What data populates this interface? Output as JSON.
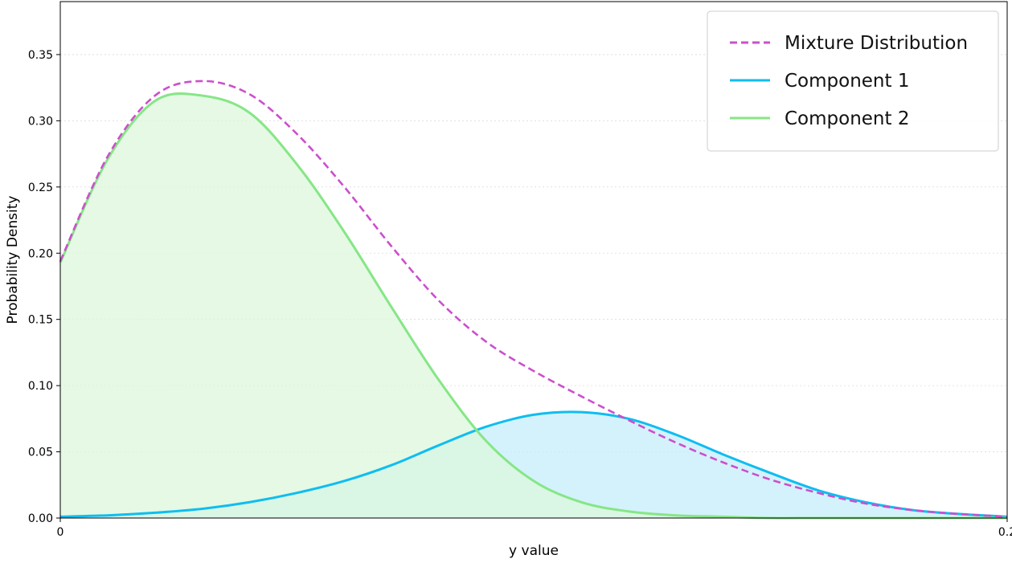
{
  "chart_data": {
    "type": "area",
    "title": "",
    "xlabel": "y value",
    "ylabel": "Probability Density",
    "xlim": [
      0,
      0.2
    ],
    "ylim": [
      0,
      0.39
    ],
    "x_ticks": [
      {
        "value": 0,
        "label": "0"
      },
      {
        "value": 0.2,
        "label": "0.2"
      }
    ],
    "y_ticks": [
      {
        "value": 0.0,
        "label": "0.00"
      },
      {
        "value": 0.05,
        "label": "0.05"
      },
      {
        "value": 0.1,
        "label": "0.10"
      },
      {
        "value": 0.15,
        "label": "0.15"
      },
      {
        "value": 0.2,
        "label": "0.20"
      },
      {
        "value": 0.25,
        "label": "0.25"
      },
      {
        "value": 0.3,
        "label": "0.30"
      },
      {
        "value": 0.35,
        "label": "0.35"
      }
    ],
    "grid": "horizontal-dotted",
    "legend_position": "top-right",
    "x": [
      0,
      0.01,
      0.02,
      0.03,
      0.04,
      0.05,
      0.06,
      0.07,
      0.08,
      0.09,
      0.1,
      0.11,
      0.12,
      0.13,
      0.14,
      0.15,
      0.16,
      0.17,
      0.18,
      0.19,
      0.2
    ],
    "series": [
      {
        "name": "Mixture Distribution",
        "style": "dashed",
        "color": "#cc4fcc",
        "fill": false,
        "values": [
          0.194,
          0.273,
          0.319,
          0.33,
          0.32,
          0.29,
          0.25,
          0.205,
          0.164,
          0.133,
          0.111,
          0.092,
          0.074,
          0.057,
          0.042,
          0.029,
          0.019,
          0.011,
          0.006,
          0.003,
          0.001
        ]
      },
      {
        "name": "Component 1",
        "style": "solid",
        "color": "#0fbdf0",
        "fill": true,
        "fill_color": "#c6eefb",
        "values": [
          0.001,
          0.002,
          0.004,
          0.007,
          0.012,
          0.019,
          0.028,
          0.04,
          0.055,
          0.069,
          0.078,
          0.08,
          0.075,
          0.063,
          0.048,
          0.034,
          0.021,
          0.012,
          0.006,
          0.003,
          0.001
        ]
      },
      {
        "name": "Component 2",
        "style": "solid",
        "color": "#86e686",
        "fill": true,
        "fill_color": "#dcf7dc",
        "values": [
          0.193,
          0.271,
          0.315,
          0.319,
          0.306,
          0.267,
          0.216,
          0.159,
          0.104,
          0.058,
          0.028,
          0.012,
          0.005,
          0.002,
          0.001,
          0.0,
          0.0,
          0.0,
          0.0,
          0.0,
          0.0
        ]
      }
    ]
  }
}
